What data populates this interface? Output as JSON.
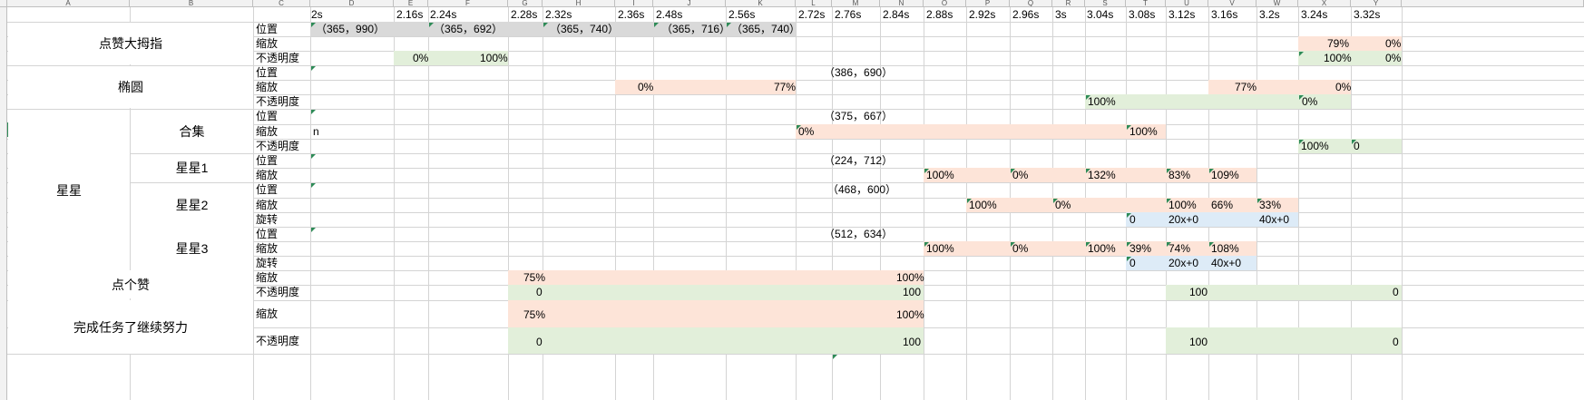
{
  "colors": {
    "orange": "#fde4d8",
    "green": "#e2efda",
    "blue": "#ddebf7",
    "gray": "#d9d9d9"
  },
  "column_headers": [
    "A",
    "B",
    "C",
    "D",
    "E",
    "F",
    "G",
    "H",
    "I",
    "J",
    "K",
    "L",
    "M",
    "N",
    "O",
    "P",
    "Q",
    "R",
    "S",
    "T",
    "U",
    "V",
    "W",
    "X",
    "Y"
  ],
  "times": [
    "2s",
    "2.16s",
    "2.24s",
    "2.28s",
    "2.32s",
    "2.36s",
    "2.48s",
    "2.56s",
    "2.72s",
    "2.76s",
    "2.84s",
    "2.88s",
    "2.92s",
    "2.96s",
    "3s",
    "3.04s",
    "3.08s",
    "3.12s",
    "3.16s",
    "3.2s",
    "3.24s",
    "3.32s"
  ],
  "groups": {
    "thumb": "点赞大拇指",
    "ellipse": "椭圆",
    "star": "星星",
    "star_all": "合集",
    "star1": "星星1",
    "star2": "星星2",
    "star3": "星星3",
    "like": "点个赞",
    "done": "完成任务了继续努力"
  },
  "props": {
    "pos": "位置",
    "scale": "缩放",
    "opacity": "不透明度",
    "rotate": "旋转"
  },
  "values": {
    "thumb_pos": [
      "（365，990）",
      "（365，692）",
      "（365，740）",
      "（365，716）",
      "（365，740）"
    ],
    "thumb_scale_x": "79%",
    "thumb_scale_y": "0%",
    "thumb_op_e": "0%",
    "thumb_op_f": "100%",
    "thumb_op_x": "100%",
    "thumb_op_y": "0%",
    "ellipse_pos": "（386，690）",
    "ellipse_scale_i": "0%",
    "ellipse_scale_k": "77%",
    "ellipse_scale_v": "77%",
    "ellipse_scale_x": "0%",
    "ellipse_op_s": "100%",
    "ellipse_op_x": "0%",
    "all_pos": "（375，667）",
    "all_scale_d": "n",
    "all_scale_l": "0%",
    "all_scale_t": "100%",
    "all_op_x": "100%",
    "all_op_y": "0",
    "s1_pos": "（224，712）",
    "s1_scale": [
      "100%",
      "0%",
      "132%",
      "83%",
      "109%"
    ],
    "s2_pos": "（468，600）",
    "s2_scale": [
      "100%",
      "0%",
      "100%",
      "66%",
      "33%"
    ],
    "s2_rot": [
      "0",
      "20x+0",
      "40x+0"
    ],
    "s3_pos": "（512，634）",
    "s3_scale": [
      "100%",
      "0%",
      "100%",
      "39%",
      "74%",
      "108%"
    ],
    "s3_rot": [
      "0",
      "20x+0",
      "40x+0"
    ],
    "like_scale": [
      "75%",
      "100%"
    ],
    "like_op": [
      "0",
      "100",
      "100",
      "0"
    ],
    "done_scale": [
      "75%",
      "100%"
    ],
    "done_op": [
      "0",
      "100",
      "100",
      "0"
    ]
  }
}
